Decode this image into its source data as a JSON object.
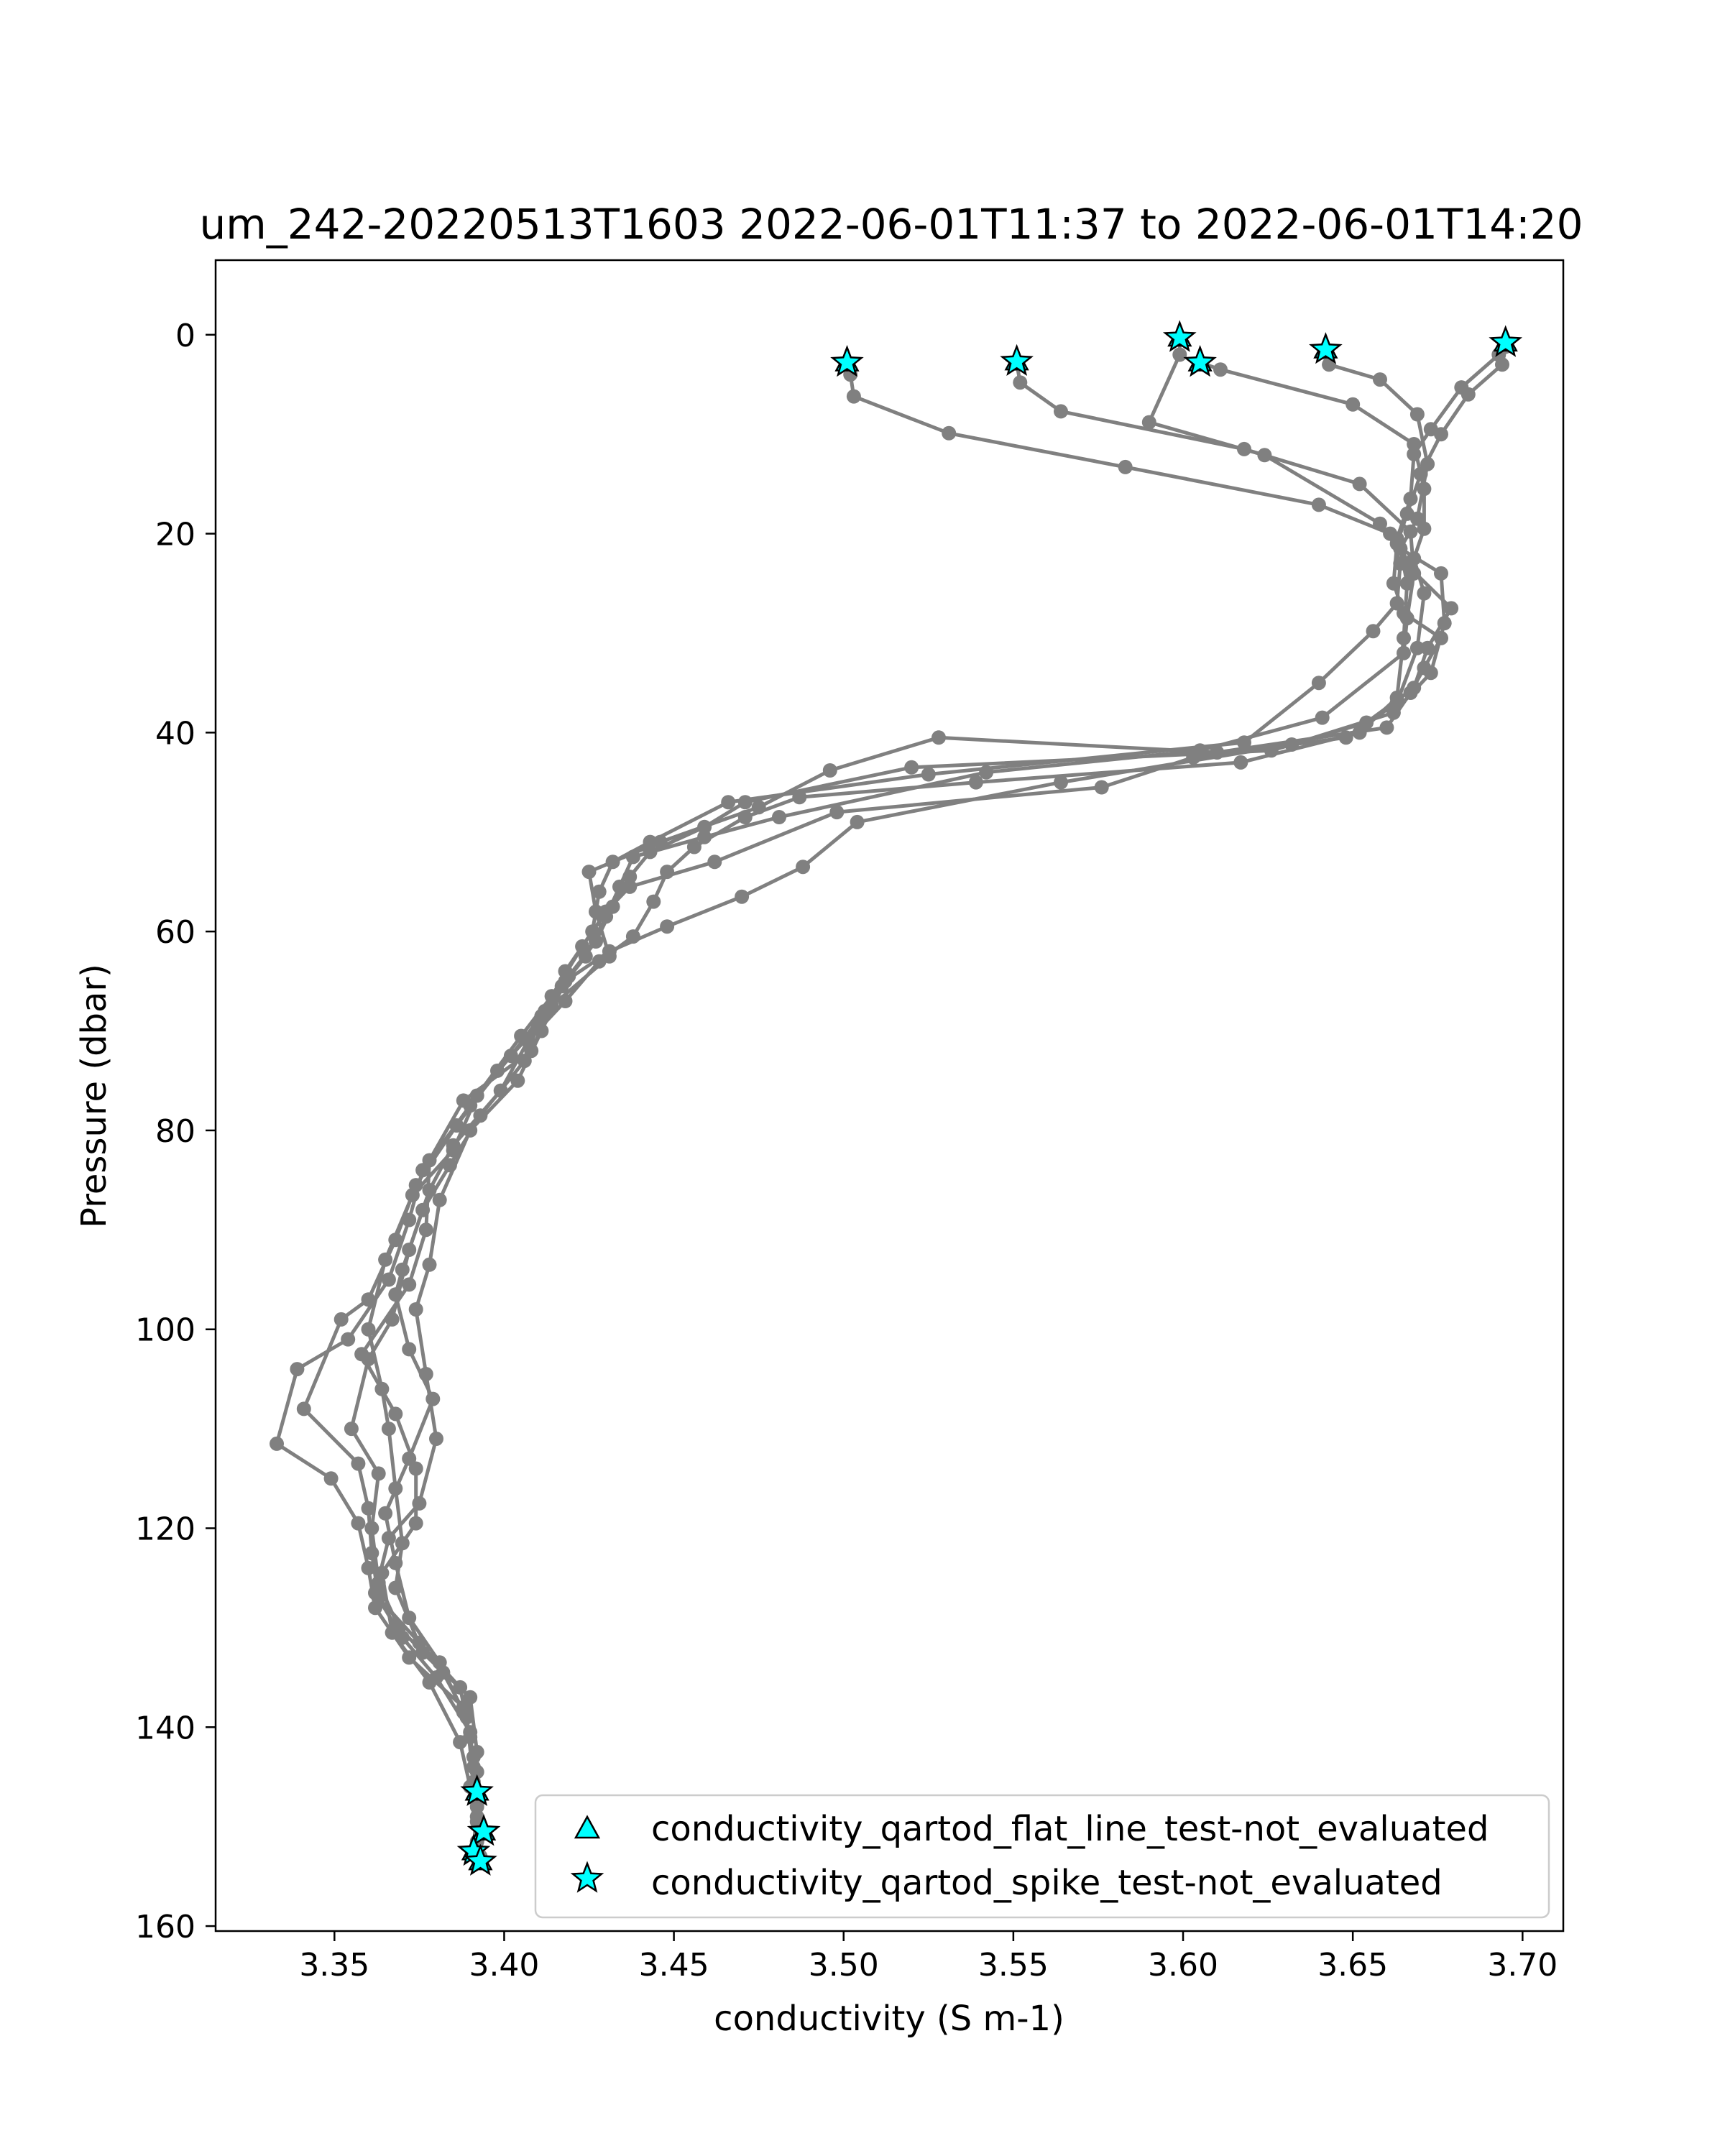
{
  "chart_data": {
    "type": "line",
    "title": "um_242-20220513T1603 2022-06-01T11:37 to 2022-06-01T14:20",
    "xlabel": "conductivity (S m-1)",
    "ylabel": "Pressure (dbar)",
    "xlim": [
      3.315,
      3.712
    ],
    "ylim": [
      160.5,
      -7.5
    ],
    "y_inverted": true,
    "xticks": [
      3.35,
      3.4,
      3.45,
      3.5,
      3.55,
      3.6,
      3.65,
      3.7
    ],
    "xtick_labels": [
      "3.35",
      "3.40",
      "3.45",
      "3.50",
      "3.55",
      "3.60",
      "3.65",
      "3.70"
    ],
    "yticks": [
      0,
      20,
      40,
      60,
      80,
      100,
      120,
      140,
      160
    ],
    "ytick_labels": [
      "0",
      "20",
      "40",
      "60",
      "80",
      "100",
      "120",
      "140",
      "160"
    ],
    "grid": false,
    "legend": {
      "placement": "lower-right",
      "entries": [
        {
          "label": "conductivity_qartod_flat_line_test-not_evaluated",
          "marker": "triangle",
          "color": "#00ffff"
        },
        {
          "label": "conductivity_qartod_spike_test-not_evaluated",
          "marker": "star",
          "color": "#00ffff"
        }
      ]
    },
    "line_color": "#808080",
    "profiles": [
      {
        "points": [
          [
            3.501,
            3.0
          ],
          [
            3.502,
            4.0
          ],
          [
            3.503,
            6.2
          ],
          [
            3.531,
            9.9
          ],
          [
            3.583,
            13.3
          ],
          [
            3.64,
            17.1
          ],
          [
            3.661,
            20.0
          ],
          [
            3.664,
            23.0
          ],
          [
            3.663,
            27.0
          ],
          [
            3.656,
            29.8
          ],
          [
            3.64,
            35.0
          ],
          [
            3.618,
            41.0
          ],
          [
            3.525,
            44.2
          ],
          [
            3.466,
            47.0
          ],
          [
            3.443,
            51.0
          ],
          [
            3.432,
            53.0
          ],
          [
            3.428,
            56.0
          ],
          [
            3.426,
            60.0
          ],
          [
            3.418,
            64.0
          ],
          [
            3.412,
            68.0
          ],
          [
            3.402,
            72.5
          ],
          [
            3.39,
            77.5
          ],
          [
            3.376,
            84.0
          ],
          [
            3.372,
            89.0
          ],
          [
            3.366,
            95.0
          ],
          [
            3.354,
            101.0
          ],
          [
            3.339,
            104.0
          ],
          [
            3.333,
            111.5
          ],
          [
            3.349,
            115.0
          ],
          [
            3.357,
            119.5
          ],
          [
            3.36,
            124.0
          ],
          [
            3.362,
            128.0
          ],
          [
            3.372,
            133.0
          ],
          [
            3.388,
            138.0
          ],
          [
            3.391,
            143.0
          ],
          [
            3.392,
            146.8
          ],
          [
            3.392,
            149.0
          ],
          [
            3.394,
            150.5
          ]
        ]
      },
      {
        "points": [
          [
            3.551,
            2.9
          ],
          [
            3.552,
            4.8
          ],
          [
            3.564,
            7.7
          ],
          [
            3.618,
            11.5
          ],
          [
            3.652,
            15.0
          ],
          [
            3.667,
            19.8
          ],
          [
            3.668,
            24.0
          ],
          [
            3.666,
            28.5
          ],
          [
            3.665,
            32.0
          ],
          [
            3.641,
            38.5
          ],
          [
            3.605,
            41.8
          ],
          [
            3.542,
            44.0
          ],
          [
            3.481,
            48.5
          ],
          [
            3.459,
            50.5
          ],
          [
            3.438,
            52.5
          ],
          [
            3.434,
            55.5
          ],
          [
            3.43,
            58.5
          ],
          [
            3.424,
            62.5
          ],
          [
            3.417,
            65.5
          ],
          [
            3.41,
            69.5
          ],
          [
            3.398,
            74.0
          ],
          [
            3.386,
            79.5
          ],
          [
            3.374,
            85.5
          ],
          [
            3.368,
            91.0
          ],
          [
            3.36,
            97.0
          ],
          [
            3.352,
            99.0
          ],
          [
            3.341,
            108.0
          ],
          [
            3.357,
            113.5
          ],
          [
            3.36,
            118.0
          ],
          [
            3.361,
            122.5
          ],
          [
            3.363,
            127.0
          ],
          [
            3.375,
            131.5
          ],
          [
            3.387,
            136.0
          ],
          [
            3.39,
            141.0
          ],
          [
            3.391,
            144.0
          ],
          [
            3.392,
            146.5
          ]
        ]
      },
      {
        "points": [
          [
            3.599,
            0.3
          ],
          [
            3.599,
            2.0
          ],
          [
            3.59,
            8.8
          ],
          [
            3.624,
            12.1
          ],
          [
            3.658,
            19.0
          ],
          [
            3.664,
            21.5
          ],
          [
            3.666,
            25.0
          ],
          [
            3.665,
            30.5
          ],
          [
            3.663,
            36.5
          ],
          [
            3.652,
            40.0
          ],
          [
            3.617,
            43.0
          ],
          [
            3.539,
            45.0
          ],
          [
            3.487,
            46.5
          ],
          [
            3.471,
            48.5
          ],
          [
            3.456,
            51.5
          ],
          [
            3.448,
            54.0
          ],
          [
            3.444,
            57.0
          ],
          [
            3.438,
            60.5
          ],
          [
            3.428,
            63.0
          ],
          [
            3.418,
            67.0
          ],
          [
            3.407,
            71.0
          ],
          [
            3.399,
            76.0
          ],
          [
            3.385,
            81.5
          ],
          [
            3.378,
            86.0
          ],
          [
            3.372,
            92.0
          ],
          [
            3.367,
            99.0
          ],
          [
            3.36,
            103.0
          ],
          [
            3.355,
            110.0
          ],
          [
            3.363,
            114.5
          ],
          [
            3.361,
            120.0
          ],
          [
            3.363,
            125.5
          ],
          [
            3.369,
            130.0
          ],
          [
            3.382,
            134.5
          ],
          [
            3.389,
            139.0
          ],
          [
            3.391,
            145.5
          ],
          [
            3.392,
            149.5
          ]
        ]
      },
      {
        "points": [
          [
            3.605,
            2.8
          ],
          [
            3.611,
            3.5
          ],
          [
            3.65,
            7.0
          ],
          [
            3.668,
            11.0
          ],
          [
            3.671,
            15.5
          ],
          [
            3.671,
            19.5
          ],
          [
            3.668,
            22.5
          ],
          [
            3.671,
            26.0
          ],
          [
            3.669,
            31.5
          ],
          [
            3.663,
            37.0
          ],
          [
            3.648,
            40.5
          ],
          [
            3.603,
            42.5
          ],
          [
            3.576,
            45.5
          ],
          [
            3.498,
            48.0
          ],
          [
            3.462,
            53.0
          ],
          [
            3.437,
            55.5
          ],
          [
            3.43,
            58.0
          ],
          [
            3.423,
            61.5
          ],
          [
            3.414,
            66.5
          ],
          [
            3.405,
            70.5
          ],
          [
            3.392,
            76.5
          ],
          [
            3.385,
            82.0
          ],
          [
            3.373,
            86.5
          ],
          [
            3.365,
            93.0
          ],
          [
            3.36,
            100.0
          ],
          [
            3.364,
            106.0
          ],
          [
            3.366,
            110.0
          ],
          [
            3.368,
            116.0
          ],
          [
            3.37,
            121.5
          ],
          [
            3.368,
            126.0
          ],
          [
            3.376,
            132.5
          ],
          [
            3.39,
            137.0
          ],
          [
            3.392,
            142.5
          ],
          [
            3.392,
            147.5
          ],
          [
            3.391,
            152.5
          ]
        ]
      },
      {
        "points": [
          [
            3.642,
            1.8
          ],
          [
            3.643,
            3.0
          ],
          [
            3.658,
            4.5
          ],
          [
            3.669,
            8.0
          ],
          [
            3.672,
            13.0
          ],
          [
            3.669,
            18.5
          ],
          [
            3.664,
            21.5
          ],
          [
            3.676,
            24.0
          ],
          [
            3.677,
            29.0
          ],
          [
            3.673,
            34.0
          ],
          [
            3.662,
            38.0
          ],
          [
            3.632,
            41.2
          ],
          [
            3.564,
            45.0
          ],
          [
            3.504,
            49.0
          ],
          [
            3.488,
            53.5
          ],
          [
            3.47,
            56.5
          ],
          [
            3.448,
            59.5
          ],
          [
            3.431,
            62.0
          ],
          [
            3.418,
            65.0
          ],
          [
            3.411,
            70.0
          ],
          [
            3.404,
            75.0
          ],
          [
            3.39,
            80.0
          ],
          [
            3.381,
            87.0
          ],
          [
            3.378,
            93.5
          ],
          [
            3.374,
            98.0
          ],
          [
            3.377,
            104.5
          ],
          [
            3.38,
            111.0
          ],
          [
            3.375,
            117.5
          ],
          [
            3.366,
            121.0
          ],
          [
            3.362,
            126.5
          ],
          [
            3.37,
            131.0
          ],
          [
            3.38,
            135.0
          ],
          [
            3.39,
            140.5
          ],
          [
            3.392,
            148.0
          ],
          [
            3.393,
            153.0
          ]
        ]
      },
      {
        "points": [
          [
            3.695,
            0.8
          ],
          [
            3.693,
            2.0
          ],
          [
            3.682,
            5.3
          ],
          [
            3.673,
            9.5
          ],
          [
            3.668,
            12.0
          ],
          [
            3.667,
            16.5
          ],
          [
            3.663,
            20.5
          ],
          [
            3.667,
            23.5
          ],
          [
            3.679,
            27.5
          ],
          [
            3.672,
            31.5
          ],
          [
            3.668,
            35.5
          ],
          [
            3.654,
            39.0
          ],
          [
            3.626,
            41.8
          ],
          [
            3.52,
            43.5
          ],
          [
            3.471,
            47.0
          ],
          [
            3.459,
            49.5
          ],
          [
            3.443,
            52.0
          ],
          [
            3.437,
            54.5
          ],
          [
            3.432,
            57.5
          ],
          [
            3.427,
            61.0
          ],
          [
            3.419,
            64.5
          ],
          [
            3.411,
            68.5
          ],
          [
            3.406,
            73.0
          ],
          [
            3.393,
            78.5
          ],
          [
            3.384,
            83.5
          ],
          [
            3.376,
            88.0
          ],
          [
            3.37,
            94.0
          ],
          [
            3.368,
            96.5
          ],
          [
            3.372,
            102.0
          ],
          [
            3.379,
            107.0
          ],
          [
            3.372,
            113.0
          ],
          [
            3.365,
            118.5
          ],
          [
            3.368,
            123.5
          ],
          [
            3.372,
            129.0
          ],
          [
            3.381,
            133.5
          ],
          [
            3.388,
            138.5
          ],
          [
            3.392,
            144.5
          ]
        ]
      },
      {
        "points": [
          [
            3.695,
            1.2
          ],
          [
            3.694,
            3.0
          ],
          [
            3.684,
            6.0
          ],
          [
            3.676,
            10.0
          ],
          [
            3.67,
            14.0
          ],
          [
            3.666,
            18.0
          ],
          [
            3.663,
            21.0
          ],
          [
            3.662,
            25.0
          ],
          [
            3.665,
            28.0
          ],
          [
            3.676,
            30.5
          ],
          [
            3.671,
            33.5
          ],
          [
            3.667,
            36.0
          ],
          [
            3.66,
            39.5
          ],
          [
            3.61,
            42.0
          ],
          [
            3.528,
            40.5
          ],
          [
            3.496,
            43.8
          ],
          [
            3.475,
            47.5
          ],
          [
            3.446,
            51.0
          ],
          [
            3.425,
            54.0
          ],
          [
            3.427,
            58.0
          ],
          [
            3.431,
            62.5
          ],
          [
            3.414,
            67.5
          ],
          [
            3.408,
            72.0
          ],
          [
            3.388,
            77.0
          ],
          [
            3.378,
            83.0
          ],
          [
            3.377,
            90.0
          ],
          [
            3.372,
            95.5
          ],
          [
            3.358,
            102.5
          ],
          [
            3.368,
            108.5
          ],
          [
            3.374,
            114.0
          ],
          [
            3.374,
            119.5
          ],
          [
            3.364,
            124.5
          ],
          [
            3.367,
            130.5
          ],
          [
            3.378,
            135.5
          ],
          [
            3.387,
            141.5
          ],
          [
            3.39,
            146.0
          ],
          [
            3.392,
            151.5
          ]
        ]
      }
    ],
    "spike_test_not_evaluated_points": [
      [
        3.501,
        2.8
      ],
      [
        3.551,
        2.7
      ],
      [
        3.599,
        0.3
      ],
      [
        3.605,
        2.8
      ],
      [
        3.642,
        1.5
      ],
      [
        3.695,
        0.8
      ],
      [
        3.392,
        146.5
      ],
      [
        3.394,
        150.5
      ],
      [
        3.391,
        152.5
      ],
      [
        3.393,
        153.5
      ]
    ],
    "flat_line_test_not_evaluated_points": [
      [
        3.501,
        2.8
      ],
      [
        3.551,
        2.7
      ],
      [
        3.599,
        0.3
      ],
      [
        3.605,
        2.8
      ],
      [
        3.642,
        1.5
      ],
      [
        3.695,
        0.8
      ],
      [
        3.392,
        146.5
      ],
      [
        3.394,
        150.5
      ],
      [
        3.391,
        152.5
      ],
      [
        3.393,
        153.5
      ]
    ]
  }
}
